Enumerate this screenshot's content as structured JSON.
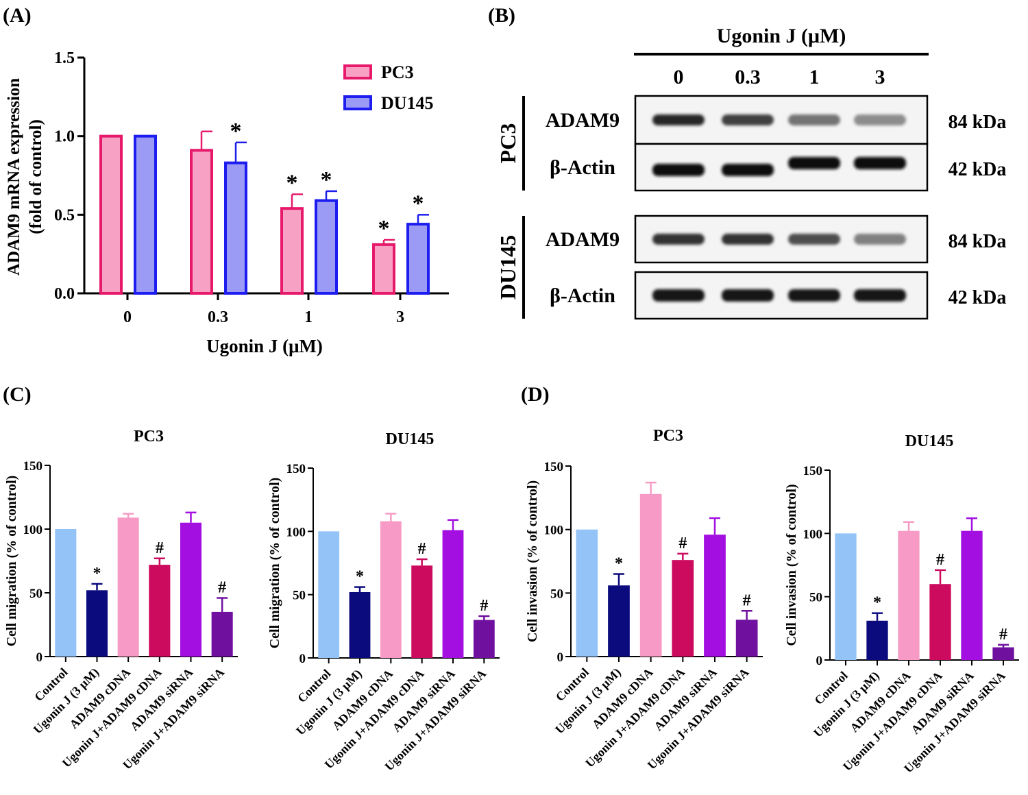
{
  "panels": {
    "a": "(A)",
    "b": "(B)",
    "c": "(C)",
    "d": "(D)"
  },
  "colors": {
    "pc3_fill": "#f7a1c4",
    "pc3_stroke": "#e6196b",
    "du145_fill": "#9b9bf6",
    "du145_stroke": "#1d1df0",
    "control": "#93c3f7",
    "ugonin": "#0b0b7e",
    "adam9_cdna": "#f79bc6",
    "ugonin_adam9_cdna": "#cc0a5e",
    "adam9_sirna": "#a30fe0",
    "ugonin_adam9_sirna": "#70109f"
  },
  "chart_data": [
    {
      "id": "A",
      "type": "bar",
      "title": "",
      "xlabel": "Ugonin J (μM)",
      "ylabel_line1": "ADAM9 mRNA expression",
      "ylabel_line2": "(fold of control)",
      "ylim": [
        0,
        1.5
      ],
      "yticks": [
        "0.0",
        "0.5",
        "1.0",
        "1.5"
      ],
      "categories": [
        "0",
        "0.3",
        "1",
        "3"
      ],
      "legend_position": "top-right",
      "series": [
        {
          "name": "PC3",
          "values": [
            1.0,
            0.91,
            0.54,
            0.31
          ],
          "errors": [
            0,
            0.12,
            0.09,
            0.03
          ],
          "marks": [
            "",
            "",
            "*",
            "*"
          ]
        },
        {
          "name": "DU145",
          "values": [
            1.0,
            0.83,
            0.59,
            0.44
          ],
          "errors": [
            0,
            0.13,
            0.06,
            0.06
          ],
          "marks": [
            "",
            "*",
            "*",
            "*"
          ]
        }
      ]
    },
    {
      "id": "C1",
      "type": "bar",
      "title": "PC3",
      "ylabel": "Cell migration (% of control)",
      "ylim": [
        0,
        150
      ],
      "yticks": [
        "0",
        "50",
        "100",
        "150"
      ],
      "categories": [
        "Control",
        "Ugonin J (3 μM)",
        "ADAM9 cDNA",
        "Ugonin J+ADAM9 cDNA",
        "ADAM9 siRNA",
        "Ugonin J+ADAM9 siRNA"
      ],
      "values": [
        100,
        52,
        109,
        72,
        105,
        35
      ],
      "errors": [
        0,
        5,
        3,
        5,
        8,
        11
      ],
      "marks": [
        "",
        "*",
        "",
        "#",
        "",
        "#"
      ]
    },
    {
      "id": "C2",
      "type": "bar",
      "title": "DU145",
      "ylabel": "Cell migration (% of control)",
      "ylim": [
        0,
        150
      ],
      "yticks": [
        "0",
        "50",
        "100",
        "150"
      ],
      "categories": [
        "Control",
        "Ugonin J (3 μM)",
        "ADAM9 cDNA",
        "Ugonin J+ADAM9 cDNA",
        "ADAM9 siRNA",
        "Ugonin J+ADAM9 siRNA"
      ],
      "values": [
        100,
        52,
        108,
        73,
        101,
        30
      ],
      "errors": [
        0,
        4,
        6,
        5,
        8,
        3
      ],
      "marks": [
        "",
        "*",
        "",
        "#",
        "",
        "#"
      ]
    },
    {
      "id": "D1",
      "type": "bar",
      "title": "PC3",
      "ylabel": "Cell invasion (% of control)",
      "ylim": [
        0,
        150
      ],
      "yticks": [
        "0",
        "50",
        "100",
        "150"
      ],
      "categories": [
        "Control",
        "Ugonin J (3 μM)",
        "ADAM9 cDNA",
        "Ugonin J+ADAM9 cDNA",
        "ADAM9 siRNA",
        "Ugonin J+ADAM9 siRNA"
      ],
      "values": [
        100,
        56,
        128,
        76,
        96,
        29
      ],
      "errors": [
        0,
        9,
        9,
        5,
        13,
        7
      ],
      "marks": [
        "",
        "*",
        "",
        "#",
        "",
        "#"
      ]
    },
    {
      "id": "D2",
      "type": "bar",
      "title": "DU145",
      "ylabel": "Cell invasion (% of control)",
      "ylim": [
        0,
        150
      ],
      "yticks": [
        "0",
        "50",
        "100",
        "150"
      ],
      "categories": [
        "Control",
        "Ugonin J (3 μM)",
        "ADAM9 cDNA",
        "Ugonin J+ADAM9 cDNA",
        "ADAM9 siRNA",
        "Ugonin J+ADAM9 siRNA"
      ],
      "values": [
        100,
        31,
        102,
        60,
        102,
        10
      ],
      "errors": [
        0,
        6,
        7,
        11,
        10,
        2
      ],
      "marks": [
        "",
        "*",
        "",
        "#",
        "",
        "#"
      ]
    }
  ],
  "blot": {
    "header": "Ugonin J (μM)",
    "lanes": [
      "0",
      "0.3",
      "1",
      "3"
    ],
    "groups": [
      {
        "cell": "PC3",
        "rows": [
          {
            "protein": "ADAM9",
            "size": "84 kDa",
            "intensity": [
              0.85,
              0.75,
              0.55,
              0.45
            ]
          },
          {
            "protein": "β-Actin",
            "size": "42 kDa",
            "intensity": [
              0.95,
              0.95,
              0.95,
              0.95
            ]
          }
        ]
      },
      {
        "cell": "DU145",
        "rows": [
          {
            "protein": "ADAM9",
            "size": "84 kDa",
            "intensity": [
              0.8,
              0.8,
              0.7,
              0.5
            ]
          },
          {
            "protein": "β-Actin",
            "size": "42 kDa",
            "intensity": [
              0.9,
              0.9,
              0.9,
              0.9
            ]
          }
        ]
      }
    ]
  }
}
